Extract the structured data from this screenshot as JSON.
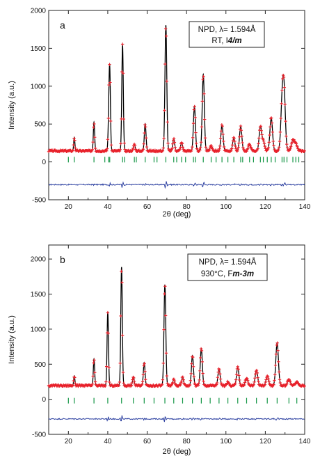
{
  "chart_data": [
    {
      "type": "line",
      "panel_label": "a",
      "annotation": {
        "line1": "NPD, λ= 1.594Å",
        "line2_prefix": "RT, I",
        "line2_group": "4/m"
      },
      "xlabel": "2θ (deg)",
      "ylabel": "Intensity (a.u.)",
      "xlim": [
        10,
        140
      ],
      "ylim": [
        -500,
        2000
      ],
      "x_ticks": [
        20,
        40,
        60,
        80,
        100,
        120,
        140
      ],
      "y_ticks": [
        -500,
        0,
        500,
        1000,
        1500,
        2000
      ],
      "background": 145,
      "difference_offset": -300,
      "bragg_y": 30,
      "peaks": [
        [
          23,
          180
        ],
        [
          33,
          380
        ],
        [
          40.5,
          330
        ],
        [
          41,
          1000
        ],
        [
          47.5,
          1400
        ],
        [
          53.5,
          90
        ],
        [
          59,
          360
        ],
        [
          69.5,
          1660
        ],
        [
          73.5,
          160
        ],
        [
          77.5,
          110
        ],
        [
          84,
          590
        ],
        [
          88.5,
          1010
        ],
        [
          92.5,
          70
        ],
        [
          98,
          340
        ],
        [
          104,
          170
        ],
        [
          107.5,
          320
        ],
        [
          112,
          90
        ],
        [
          117.5,
          320
        ],
        [
          119,
          120
        ],
        [
          123,
          440
        ],
        [
          128.5,
          560
        ],
        [
          129.5,
          750
        ],
        [
          134,
          140
        ],
        [
          135.5,
          90
        ]
      ],
      "reflections": [
        20,
        23,
        33,
        38.5,
        40.5,
        41,
        47.5,
        48.5,
        53.5,
        54.5,
        59,
        63.5,
        65,
        69.5,
        73.5,
        75,
        77.5,
        79.5,
        83.5,
        84.5,
        88.5,
        92.5,
        95,
        98,
        101,
        104,
        107.5,
        108.5,
        112,
        114,
        117.5,
        119,
        121,
        123,
        125,
        128.5,
        129.5,
        131,
        134,
        135.5,
        137
      ],
      "series": [
        {
          "role": "observed",
          "color": "#e8202a"
        },
        {
          "role": "calculated",
          "color": "#000000"
        },
        {
          "role": "bragg",
          "color": "#149646"
        },
        {
          "role": "difference",
          "color": "#2b3fa0"
        }
      ]
    },
    {
      "type": "line",
      "panel_label": "b",
      "annotation": {
        "line1": "NPD, λ= 1.594Å",
        "line2_prefix": "930°C, F",
        "line2_group": "m-3m"
      },
      "xlabel": "2θ (deg)",
      "ylabel": "Intensity (a.u.)",
      "xlim": [
        10,
        140
      ],
      "ylim": [
        -500,
        2200
      ],
      "x_ticks": [
        20,
        40,
        60,
        80,
        100,
        120,
        140
      ],
      "y_ticks": [
        -500,
        0,
        500,
        1000,
        1500,
        2000
      ],
      "background": 195,
      "difference_offset": -280,
      "bragg_y": -20,
      "peaks": [
        [
          23,
          140
        ],
        [
          33,
          380
        ],
        [
          40,
          1050
        ],
        [
          47,
          1690
        ],
        [
          53,
          130
        ],
        [
          58.5,
          330
        ],
        [
          69,
          1440
        ],
        [
          73.5,
          90
        ],
        [
          78,
          120
        ],
        [
          83,
          430
        ],
        [
          87.5,
          530
        ],
        [
          96.5,
          240
        ],
        [
          101,
          50
        ],
        [
          106,
          260
        ],
        [
          110.5,
          110
        ],
        [
          115.5,
          220
        ],
        [
          121,
          130
        ],
        [
          126,
          610
        ],
        [
          132,
          90
        ],
        [
          136,
          50
        ]
      ],
      "reflections": [
        20,
        23,
        33,
        40,
        47,
        53,
        58.5,
        63.5,
        69,
        73.5,
        78,
        83,
        87.5,
        92,
        96.5,
        101,
        106,
        110.5,
        115.5,
        121,
        126,
        132,
        136
      ],
      "series": [
        {
          "role": "observed",
          "color": "#e8202a"
        },
        {
          "role": "calculated",
          "color": "#000000"
        },
        {
          "role": "bragg",
          "color": "#149646"
        },
        {
          "role": "difference",
          "color": "#2b3fa0"
        }
      ]
    }
  ]
}
